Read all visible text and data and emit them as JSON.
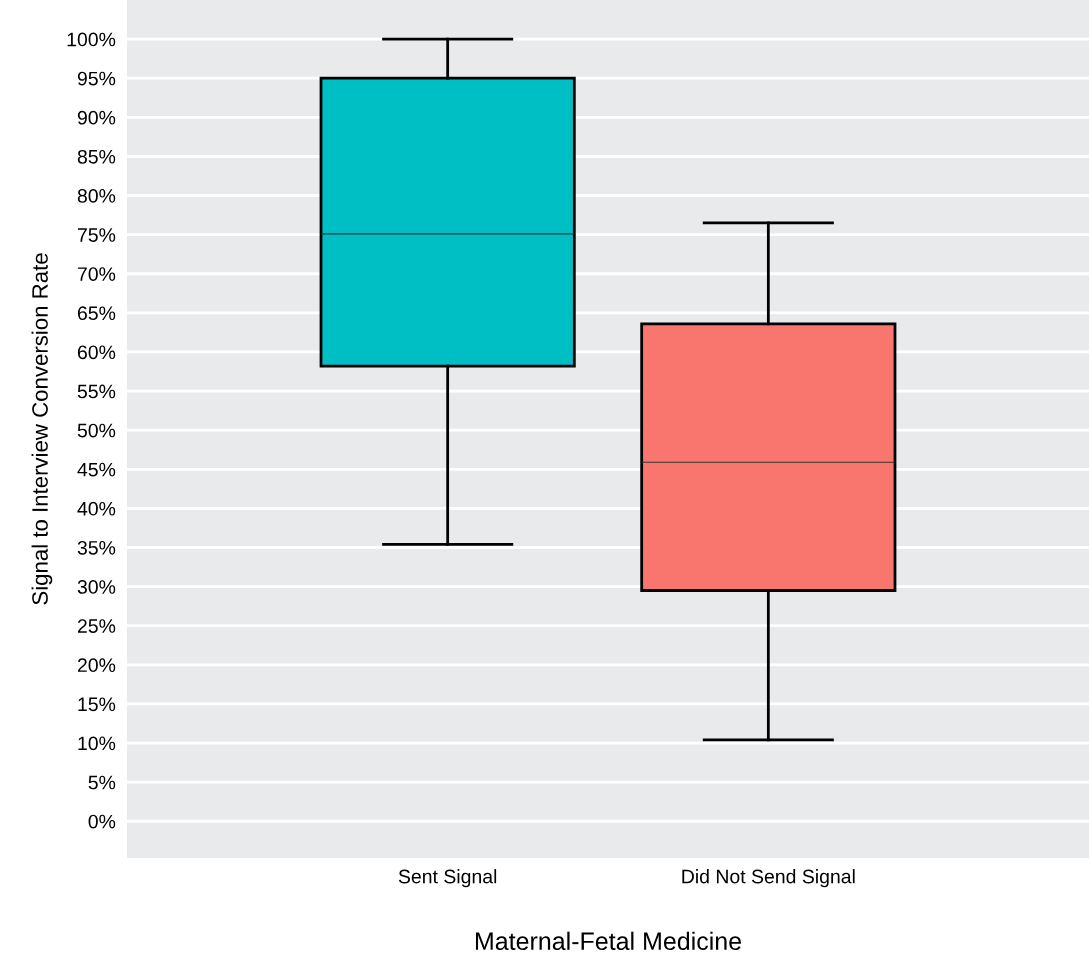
{
  "chart_data": {
    "type": "box",
    "xlabel": "Maternal-Fetal Medicine",
    "ylabel": "Signal to Interview Conversion Rate",
    "categories": [
      "Sent Signal",
      "Did Not Send Signal"
    ],
    "colors": [
      "#00bfc4",
      "#f8766d"
    ],
    "boxes": [
      {
        "low": 35.4,
        "q1": 58.2,
        "median": 75.1,
        "q3": 95.0,
        "high": 100
      },
      {
        "low": 10.4,
        "q1": 29.5,
        "median": 45.9,
        "q3": 63.6,
        "high": 76.5
      }
    ],
    "ylim": [
      -4.7,
      105
    ],
    "yticks": [
      {
        "value": 0,
        "label": "0%"
      },
      {
        "value": 5,
        "label": "5%"
      },
      {
        "value": 10,
        "label": "10%"
      },
      {
        "value": 15,
        "label": "15%"
      },
      {
        "value": 20,
        "label": "20%"
      },
      {
        "value": 25,
        "label": "25%"
      },
      {
        "value": 30,
        "label": "30%"
      },
      {
        "value": 35,
        "label": "35%"
      },
      {
        "value": 40,
        "label": "40%"
      },
      {
        "value": 45,
        "label": "45%"
      },
      {
        "value": 50,
        "label": "50%"
      },
      {
        "value": 55,
        "label": "55%"
      },
      {
        "value": 60,
        "label": "60%"
      },
      {
        "value": 65,
        "label": "65%"
      },
      {
        "value": 70,
        "label": "70%"
      },
      {
        "value": 75,
        "label": "75%"
      },
      {
        "value": 80,
        "label": "80%"
      },
      {
        "value": 85,
        "label": "85%"
      },
      {
        "value": 90,
        "label": "90%"
      },
      {
        "value": 95,
        "label": "95%"
      },
      {
        "value": 100,
        "label": "100%"
      }
    ],
    "grid": "y"
  }
}
